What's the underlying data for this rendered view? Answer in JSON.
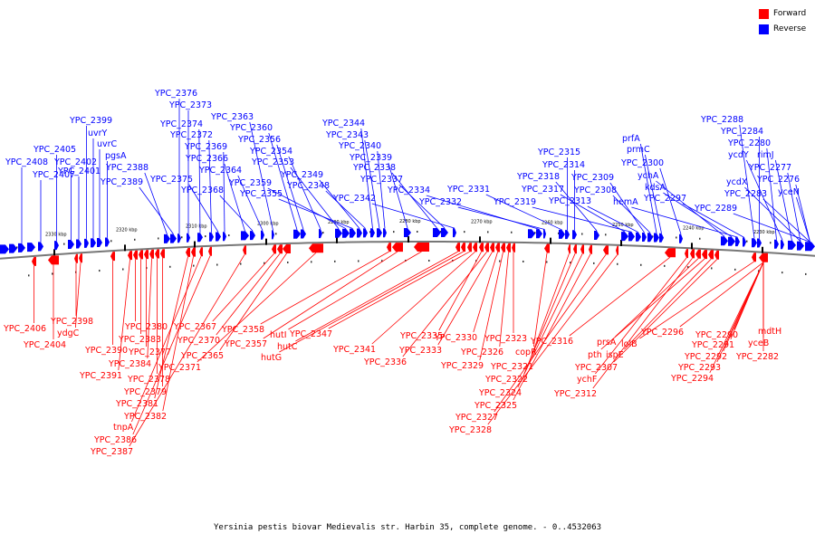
{
  "legend": {
    "forward_label": "Forward",
    "reverse_label": "Reverse",
    "forward_color": "#ff0000",
    "reverse_color": "#0000ff"
  },
  "caption": "Yersinia pestis biovar Medievalis str. Harbin 35, complete genome. - 0..4532063",
  "scale_ticks": [
    "2330 kbp",
    "2320 kbp",
    "2310 kbp",
    "2300 kbp",
    "2290 kbp",
    "2280 kbp",
    "2270 kbp",
    "2260 kbp",
    "2250 kbp",
    "2240 kbp",
    "2230 kbp"
  ],
  "reverse_genes": [
    "YPC_2408",
    "YPC_2407",
    "YPC_2405",
    "YPC_2402",
    "YPC_2401",
    "YPC_2399",
    "uvrY",
    "uvrC",
    "pgsA",
    "YPC_2388",
    "YPC_2389",
    "YPC_2376",
    "YPC_2373",
    "YPC_2374",
    "YPC_2372",
    "YPC_2375",
    "YPC_2369",
    "YPC_2366",
    "YPC_2368",
    "YPC_2364",
    "YPC_2363",
    "YPC_2360",
    "YPC_2356",
    "YPC_2354",
    "YPC_2353",
    "YPC_2359",
    "YPC_2355",
    "YPC_2349",
    "YPC_2348",
    "YPC_2344",
    "YPC_2343",
    "YPC_2340",
    "YPC_2339",
    "YPC_2338",
    "YPC_2337",
    "YPC_2342",
    "YPC_2334",
    "YPC_2332",
    "YPC_2331",
    "YPC_2315",
    "YPC_2314",
    "YPC_2318",
    "YPC_2317",
    "YPC_2319",
    "YPC_2313",
    "YPC_2309",
    "YPC_2308",
    "prfA",
    "prmC",
    "YPC_2300",
    "ychA",
    "kdsA",
    "hemA",
    "YPC_2297",
    "YPC_2288",
    "YPC_2284",
    "YPC_2280",
    "ycdY",
    "rimJ",
    "YPC_2277",
    "ycdX",
    "YPC_2276",
    "YPC_2283",
    "yceN",
    "YPC_2289"
  ],
  "forward_genes": [
    "YPC_2406",
    "YPC_2404",
    "YPC_2398",
    "ydgC",
    "YPC_2390",
    "YPC_2391",
    "YPC_2380",
    "YPC_2383",
    "YPC_2377",
    "YPC_2384",
    "YPC_2378",
    "YPC_2379",
    "YPC_2381",
    "YPC_2382",
    "tnpA",
    "YPC_2386",
    "YPC_2387",
    "YPC_2367",
    "YPC_2370",
    "YPC_2365",
    "YPC_2371",
    "YPC_2358",
    "YPC_2357",
    "hutI",
    "hutC",
    "hutG",
    "YPC_2347",
    "YPC_2341",
    "YPC_2335",
    "YPC_2336",
    "YPC_2333",
    "YPC_2330",
    "YPC_2329",
    "YPC_2326",
    "YPC_2323",
    "copR",
    "YPC_2321",
    "YPC_2322",
    "YPC_2324",
    "YPC_2325",
    "YPC_2327",
    "YPC_2328",
    "YPC_2316",
    "ychF",
    "YPC_2312",
    "prsA",
    "pth",
    "ispE",
    "YPC_2307",
    "lolB",
    "YPC_2296",
    "YPC_2290",
    "YPC_2291",
    "YPC_2292",
    "YPC_2293",
    "YPC_2294",
    "mdtH",
    "yceB",
    "YPC_2282"
  ]
}
